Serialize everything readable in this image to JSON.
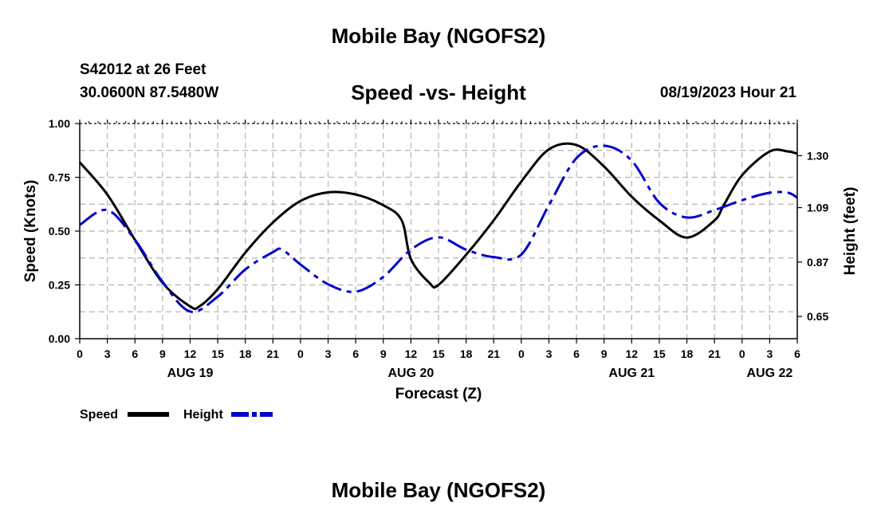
{
  "header": {
    "title": "Mobile Bay (NGOFS2)",
    "station": "S42012 at 26 Feet",
    "coords": "30.0600N  87.5480W",
    "subtitle": "Speed -vs- Height",
    "datetime": "08/19/2023 Hour 21"
  },
  "footer": {
    "title": "Mobile Bay (NGOFS2)"
  },
  "colors": {
    "speed": "#000000",
    "height": "#0000cc",
    "grid": "#b4b4b4"
  },
  "chart_data": {
    "type": "line",
    "xlabel": "Forecast (Z)",
    "ylabel": "Speed (Knots)",
    "y2label": "Height (feet)",
    "xlim": [
      0,
      78
    ],
    "ylim": [
      0,
      1.0
    ],
    "y2lim": [
      0.56,
      1.43
    ],
    "grid": true,
    "x_ticks": [
      0,
      3,
      6,
      9,
      12,
      15,
      18,
      21,
      24,
      27,
      30,
      33,
      36,
      39,
      42,
      45,
      48,
      51,
      54,
      57,
      60,
      63,
      66,
      69,
      72,
      75,
      78
    ],
    "x_tick_labels": [
      "0",
      "3",
      "6",
      "9",
      "12",
      "15",
      "18",
      "21",
      "0",
      "3",
      "6",
      "9",
      "12",
      "15",
      "18",
      "21",
      "0",
      "3",
      "6",
      "9",
      "12",
      "15",
      "18",
      "21",
      "0",
      "3",
      "6"
    ],
    "date_labels": [
      {
        "text": "AUG 19",
        "x": 12
      },
      {
        "text": "AUG 20",
        "x": 36
      },
      {
        "text": "AUG 21",
        "x": 60
      },
      {
        "text": "AUG 22",
        "x": 75
      }
    ],
    "y_ticks": [
      {
        "value": 0.0,
        "label": "0.00"
      },
      {
        "value": 0.25,
        "label": "0.25"
      },
      {
        "value": 0.5,
        "label": "0.50"
      },
      {
        "value": 0.75,
        "label": "0.75"
      },
      {
        "value": 1.0,
        "label": "1.00"
      }
    ],
    "y2_ticks": [
      {
        "value": 0.65,
        "label": "0.65"
      },
      {
        "value": 0.87,
        "label": "0.87"
      },
      {
        "value": 1.09,
        "label": "1.09"
      },
      {
        "value": 1.3,
        "label": "1.30"
      }
    ],
    "legend": {
      "position": "bottom-left",
      "speed_label": "Speed",
      "height_label": "Height"
    },
    "series": [
      {
        "name": "Speed",
        "axis": "left",
        "x": [
          0,
          3,
          6,
          9,
          12,
          13,
          15,
          18,
          21,
          24,
          27,
          30,
          33,
          35,
          36,
          38,
          39,
          42,
          45,
          48,
          51,
          54,
          57,
          60,
          63,
          66,
          69,
          70,
          72,
          75,
          77,
          78
        ],
        "values": [
          0.82,
          0.67,
          0.46,
          0.26,
          0.15,
          0.15,
          0.23,
          0.4,
          0.54,
          0.64,
          0.68,
          0.67,
          0.62,
          0.55,
          0.37,
          0.26,
          0.25,
          0.39,
          0.55,
          0.73,
          0.88,
          0.9,
          0.8,
          0.66,
          0.55,
          0.47,
          0.55,
          0.62,
          0.76,
          0.87,
          0.87,
          0.86
        ]
      },
      {
        "name": "Height",
        "axis": "right",
        "x": [
          0,
          3,
          6,
          9,
          12,
          15,
          18,
          21,
          22,
          24,
          27,
          30,
          33,
          36,
          39,
          42,
          45,
          48,
          51,
          54,
          57,
          60,
          63,
          66,
          69,
          72,
          75,
          77,
          78
        ],
        "values": [
          1.02,
          1.08,
          0.96,
          0.79,
          0.67,
          0.73,
          0.84,
          0.91,
          0.92,
          0.86,
          0.78,
          0.75,
          0.81,
          0.92,
          0.97,
          0.92,
          0.89,
          0.9,
          1.1,
          1.29,
          1.34,
          1.28,
          1.11,
          1.05,
          1.08,
          1.12,
          1.15,
          1.15,
          1.13
        ]
      }
    ]
  }
}
